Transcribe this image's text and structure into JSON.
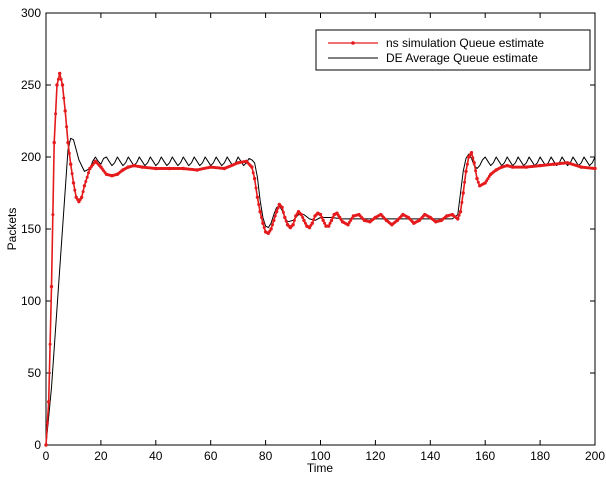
{
  "chart_data": {
    "type": "line",
    "xlabel": "Time",
    "ylabel": "Packets",
    "xlim": [
      0,
      200
    ],
    "ylim": [
      0,
      300
    ],
    "xticks": [
      0,
      20,
      40,
      60,
      80,
      100,
      120,
      140,
      160,
      180,
      200
    ],
    "yticks": [
      0,
      50,
      100,
      150,
      200,
      250,
      300
    ],
    "grid": false,
    "legend_position": "top-right",
    "series": [
      {
        "name": "ns simulation Queue estimate",
        "color": "#e41a1c",
        "marker": "dot",
        "x": [
          0,
          1,
          2,
          3,
          4,
          5,
          6,
          7,
          8,
          9,
          10,
          11,
          12,
          13,
          14,
          16,
          18,
          20,
          22,
          24,
          26,
          28,
          30,
          32,
          35,
          40,
          45,
          50,
          55,
          60,
          65,
          70,
          73,
          75,
          76,
          77,
          78,
          79,
          80,
          81,
          82,
          83,
          84,
          85,
          86,
          87,
          88,
          89,
          90,
          91,
          92,
          93,
          94,
          95,
          96,
          97,
          98,
          99,
          100,
          101,
          102,
          103,
          104,
          105,
          106,
          107,
          108,
          110,
          112,
          114,
          116,
          118,
          120,
          122,
          124,
          126,
          128,
          130,
          132,
          134,
          136,
          138,
          140,
          142,
          144,
          146,
          148,
          150,
          151,
          152,
          153,
          154,
          155,
          156,
          157,
          158,
          160,
          162,
          164,
          166,
          168,
          170,
          175,
          180,
          185,
          190,
          195,
          200
        ],
        "values": [
          0,
          30,
          110,
          210,
          250,
          258,
          250,
          232,
          210,
          195,
          182,
          172,
          169,
          172,
          180,
          192,
          197,
          193,
          188,
          187,
          188,
          191,
          193,
          194,
          193,
          192,
          192,
          192,
          191,
          193,
          192,
          196,
          197,
          193,
          185,
          172,
          162,
          154,
          148,
          147,
          150,
          156,
          162,
          167,
          165,
          158,
          153,
          151,
          153,
          159,
          162,
          160,
          156,
          152,
          151,
          154,
          159,
          161,
          160,
          156,
          152,
          152,
          156,
          160,
          161,
          158,
          155,
          153,
          159,
          160,
          156,
          155,
          158,
          160,
          156,
          153,
          156,
          160,
          158,
          154,
          156,
          160,
          158,
          155,
          156,
          159,
          160,
          157,
          162,
          175,
          190,
          200,
          203,
          196,
          185,
          180,
          182,
          188,
          191,
          193,
          194,
          193,
          193,
          194,
          195,
          196,
          193,
          192
        ]
      },
      {
        "name": "DE Average Queue estimate",
        "color": "#000000",
        "marker": "none",
        "x": [
          0,
          2,
          4,
          6,
          8,
          9,
          10,
          11,
          12,
          14,
          16,
          17,
          18,
          19,
          20,
          21,
          22,
          23,
          24,
          25,
          26,
          27,
          28,
          29,
          30,
          31,
          32,
          33,
          34,
          35,
          36,
          37,
          38,
          39,
          40,
          41,
          42,
          43,
          44,
          45,
          46,
          47,
          48,
          49,
          50,
          51,
          52,
          53,
          54,
          55,
          56,
          57,
          58,
          59,
          60,
          61,
          62,
          63,
          64,
          65,
          66,
          67,
          68,
          69,
          70,
          71,
          72,
          73,
          74,
          75,
          76,
          77,
          78,
          79,
          80,
          81,
          82,
          83,
          84,
          85,
          86,
          87,
          88,
          90,
          92,
          94,
          96,
          98,
          100,
          104,
          108,
          112,
          116,
          120,
          130,
          140,
          148,
          150,
          151,
          152,
          153,
          154,
          155,
          156,
          157,
          158,
          159,
          160,
          161,
          162,
          163,
          164,
          165,
          166,
          167,
          168,
          169,
          170,
          171,
          172,
          173,
          174,
          175,
          176,
          177,
          178,
          179,
          180,
          181,
          182,
          183,
          184,
          185,
          186,
          187,
          188,
          189,
          190,
          191,
          192,
          193,
          194,
          195,
          196,
          197,
          198,
          199,
          200
        ],
        "values": [
          0,
          40,
          95,
          150,
          205,
          213,
          212,
          205,
          198,
          190,
          192,
          197,
          200,
          197,
          195,
          199,
          200,
          197,
          194,
          196,
          200,
          197,
          194,
          196,
          200,
          197,
          194,
          196,
          200,
          197,
          194,
          196,
          200,
          197,
          194,
          196,
          200,
          197,
          194,
          196,
          200,
          197,
          194,
          196,
          200,
          197,
          194,
          196,
          200,
          197,
          194,
          196,
          200,
          197,
          194,
          196,
          200,
          197,
          194,
          196,
          200,
          197,
          194,
          196,
          200,
          197,
          194,
          196,
          199,
          198,
          196,
          186,
          170,
          158,
          152,
          151,
          154,
          160,
          165,
          166,
          163,
          158,
          155,
          156,
          160,
          160,
          157,
          156,
          158,
          158,
          157,
          157,
          157,
          157,
          157,
          157,
          157,
          160,
          175,
          190,
          199,
          202,
          199,
          194,
          192,
          194,
          198,
          200,
          197,
          194,
          196,
          200,
          197,
          194,
          196,
          200,
          197,
          194,
          196,
          200,
          197,
          194,
          196,
          200,
          197,
          194,
          196,
          200,
          197,
          194,
          196,
          200,
          197,
          194,
          196,
          200,
          197,
          194,
          196,
          200,
          197,
          194,
          196,
          200,
          197,
          194,
          196,
          200
        ]
      }
    ]
  }
}
